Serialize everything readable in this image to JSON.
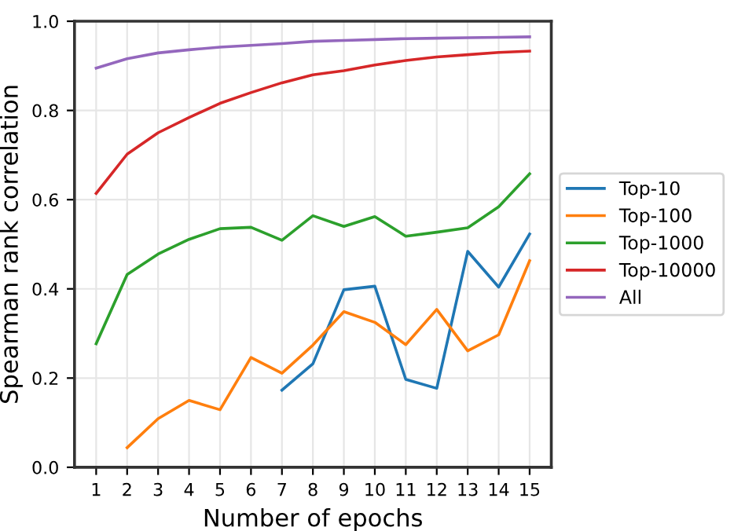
{
  "chart_data": {
    "type": "line",
    "xlabel": "Number of epochs",
    "ylabel": "Spearman rank correlation",
    "x": [
      1,
      2,
      3,
      4,
      5,
      6,
      7,
      8,
      9,
      10,
      11,
      12,
      13,
      14,
      15
    ],
    "series": [
      {
        "name": "Top-10",
        "color": "#1f77b4",
        "values": [
          null,
          null,
          null,
          null,
          null,
          null,
          0.173,
          0.232,
          0.398,
          0.406,
          0.197,
          0.177,
          0.484,
          0.404,
          0.523
        ]
      },
      {
        "name": "Top-100",
        "color": "#ff7f0e",
        "values": [
          null,
          0.044,
          0.109,
          0.15,
          0.129,
          0.246,
          0.211,
          0.274,
          0.349,
          0.325,
          0.275,
          0.354,
          0.261,
          0.297,
          0.463
        ]
      },
      {
        "name": "Top-1000",
        "color": "#2ca02c",
        "values": [
          0.277,
          0.432,
          0.478,
          0.511,
          0.535,
          0.538,
          0.509,
          0.564,
          0.54,
          0.562,
          0.518,
          0.527,
          0.537,
          0.584,
          0.658
        ]
      },
      {
        "name": "Top-10000",
        "color": "#d62728",
        "values": [
          0.614,
          0.702,
          0.75,
          0.784,
          0.816,
          0.84,
          0.862,
          0.88,
          0.889,
          0.902,
          0.912,
          0.92,
          0.925,
          0.93,
          0.933
        ]
      },
      {
        "name": "All",
        "color": "#9467bd",
        "values": [
          0.895,
          0.916,
          0.929,
          0.936,
          0.942,
          0.946,
          0.95,
          0.955,
          0.957,
          0.959,
          0.961,
          0.962,
          0.963,
          0.964,
          0.965
        ]
      }
    ],
    "xlim": [
      0.3,
      15.7
    ],
    "xticks": [
      1,
      2,
      3,
      4,
      5,
      6,
      7,
      8,
      9,
      10,
      11,
      12,
      13,
      14,
      15
    ],
    "ylim": [
      0.0,
      1.0
    ],
    "yticks": [
      {
        "value": 0.0,
        "label": "0.0"
      },
      {
        "value": 0.2,
        "label": "0.2"
      },
      {
        "value": 0.4,
        "label": "0.4"
      },
      {
        "value": 0.6,
        "label": "0.6"
      },
      {
        "value": 0.8,
        "label": "0.8"
      },
      {
        "value": 1.0,
        "label": "1.0"
      }
    ],
    "grid": true,
    "legend": "right",
    "marker": "none",
    "line_style": "solid"
  }
}
